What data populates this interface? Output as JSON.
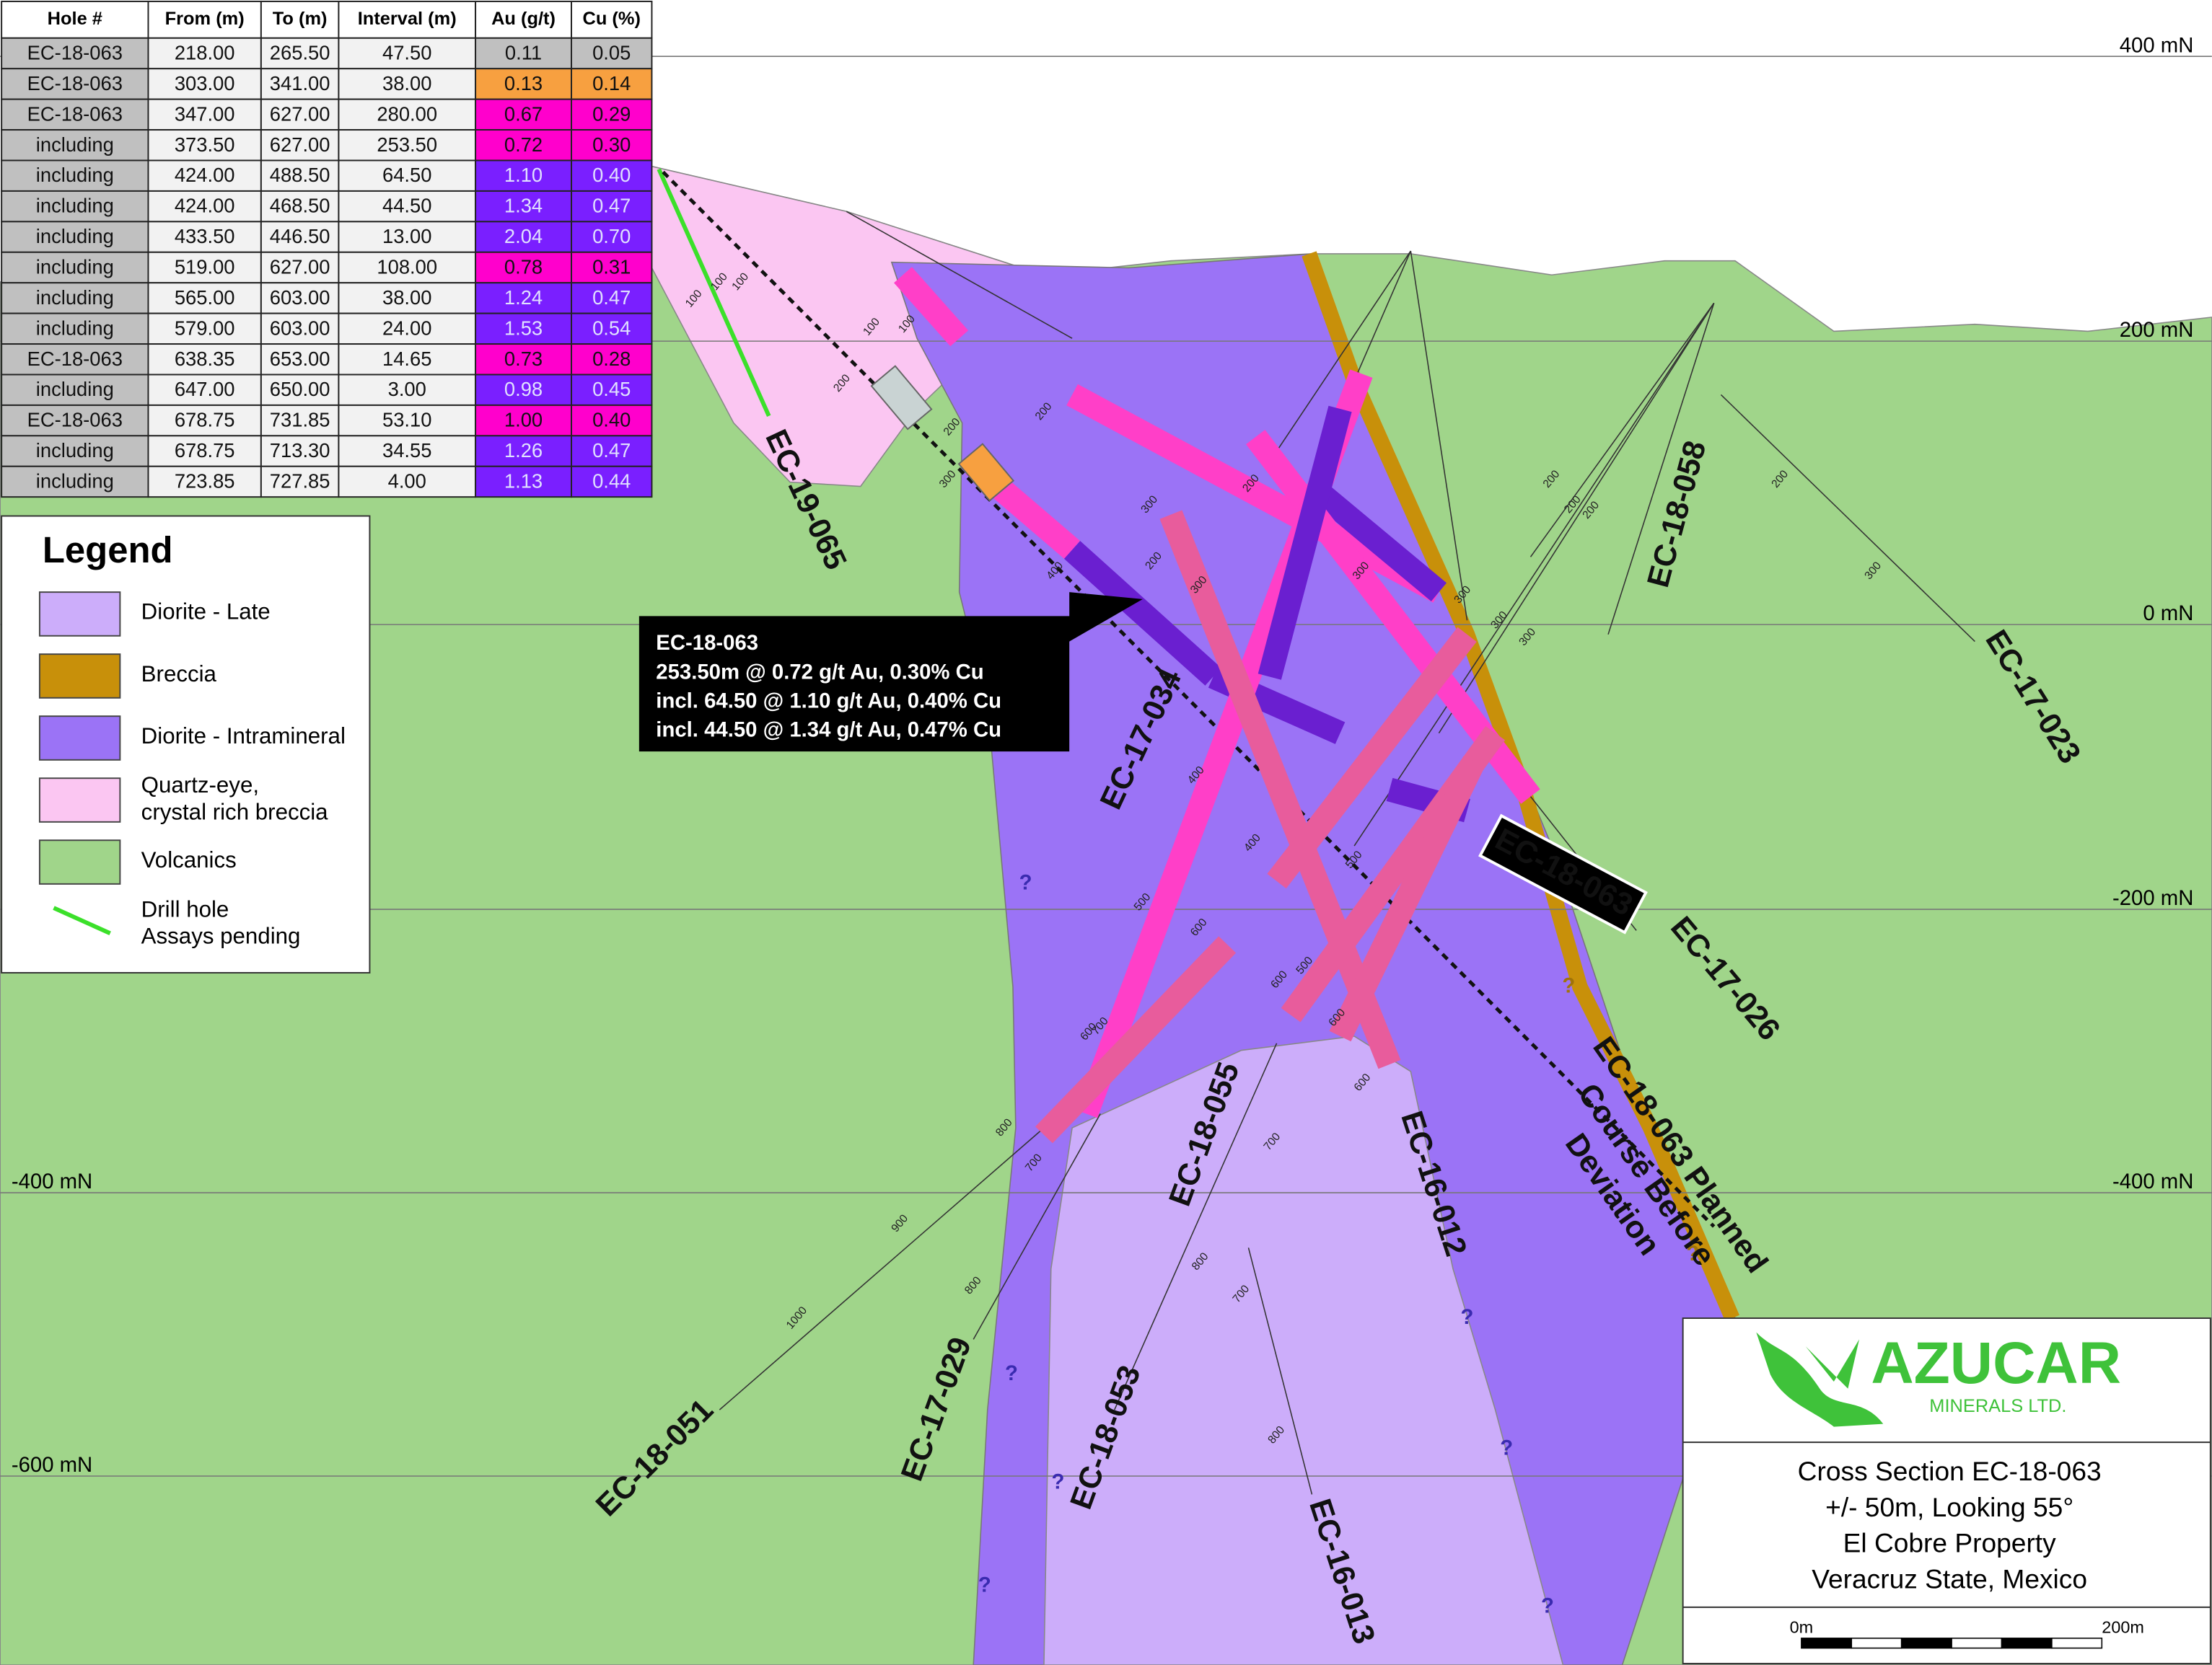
{
  "table": {
    "header": [
      "Hole #",
      "From (m)",
      "To (m)",
      "Interval (m)",
      "Au (g/t)",
      "Cu (%)"
    ],
    "rows": [
      [
        "EC-18-063",
        "218.00",
        "265.50",
        "47.50",
        "0.11",
        "0.05"
      ],
      [
        "EC-18-063",
        "303.00",
        "341.00",
        "38.00",
        "0.13",
        "0.14"
      ],
      [
        "EC-18-063",
        "347.00",
        "627.00",
        "280.00",
        "0.67",
        "0.29"
      ],
      [
        "including",
        "373.50",
        "627.00",
        "253.50",
        "0.72",
        "0.30"
      ],
      [
        "including",
        "424.00",
        "488.50",
        "64.50",
        "1.10",
        "0.40"
      ],
      [
        "including",
        "424.00",
        "468.50",
        "44.50",
        "1.34",
        "0.47"
      ],
      [
        "including",
        "433.50",
        "446.50",
        "13.00",
        "2.04",
        "0.70"
      ],
      [
        "including",
        "519.00",
        "627.00",
        "108.00",
        "0.78",
        "0.31"
      ],
      [
        "including",
        "565.00",
        "603.00",
        "38.00",
        "1.24",
        "0.47"
      ],
      [
        "including",
        "579.00",
        "603.00",
        "24.00",
        "1.53",
        "0.54"
      ],
      [
        "EC-18-063",
        "638.35",
        "653.00",
        "14.65",
        "0.73",
        "0.28"
      ],
      [
        "including",
        "647.00",
        "650.00",
        "3.00",
        "0.98",
        "0.45"
      ],
      [
        "EC-18-063",
        "678.75",
        "731.85",
        "53.10",
        "1.00",
        "0.40"
      ],
      [
        "including",
        "678.75",
        "713.30",
        "34.55",
        "1.26",
        "0.47"
      ],
      [
        "including",
        "723.85",
        "727.85",
        "4.00",
        "1.13",
        "0.44"
      ]
    ]
  },
  "elevations": [
    "400 mN",
    "200 mN",
    "0 mN",
    "-200 mN",
    "-400 mN",
    "-600 mN"
  ],
  "legend": {
    "title": "Legend",
    "items": [
      {
        "lines": [
          "Diorite - Late"
        ]
      },
      {
        "lines": [
          "Breccia"
        ]
      },
      {
        "lines": [
          "Diorite - Intramineral"
        ]
      },
      {
        "lines": [
          "Quartz-eye,",
          "crystal rich breccia"
        ]
      },
      {
        "lines": [
          "Volcanics"
        ]
      },
      {
        "lines": [
          "Drill hole",
          "Assays pending"
        ]
      }
    ]
  },
  "holes": [
    "EC-19-065",
    "EC-17-034",
    "EC-18-058",
    "EC-17-023",
    "EC-18-063",
    "EC-17-026",
    "EC-18-055",
    "EC-16-012",
    "EC-18-051",
    "EC-17-029",
    "EC-18-053",
    "EC-16-013"
  ],
  "planned_label": [
    "EC-18-063 Planned",
    "Course Before",
    "Deviation"
  ],
  "callout": {
    "lines": [
      "EC-18-063",
      "253.50m @ 0.72 g/t Au, 0.30% Cu",
      "incl. 64.50 @ 1.10 g/t Au, 0.40% Cu",
      "incl. 44.50 @ 1.34 g/t Au, 0.47% Cu"
    ]
  },
  "depth_labels": [
    "100",
    "100",
    "100",
    "200",
    "100",
    "100",
    "200",
    "200",
    "300",
    "300",
    "200",
    "300",
    "400",
    "200",
    "300",
    "300",
    "300",
    "300",
    "200",
    "200",
    "200",
    "300",
    "200",
    "400",
    "400",
    "500",
    "600",
    "500",
    "600",
    "600",
    "600",
    "500",
    "700",
    "600",
    "800",
    "700",
    "900",
    "800",
    "1000",
    "800",
    "700",
    "700",
    "800"
  ],
  "unknown_marker": "?",
  "title_block": {
    "company": "AZUCAR",
    "company_sub": "MINERALS LTD.",
    "lines": [
      "Cross Section EC-18-063",
      "+/- 50m, Looking 55°",
      "El Cobre Property",
      "Veracruz State, Mexico"
    ],
    "scale": [
      "0m",
      "200m"
    ]
  }
}
